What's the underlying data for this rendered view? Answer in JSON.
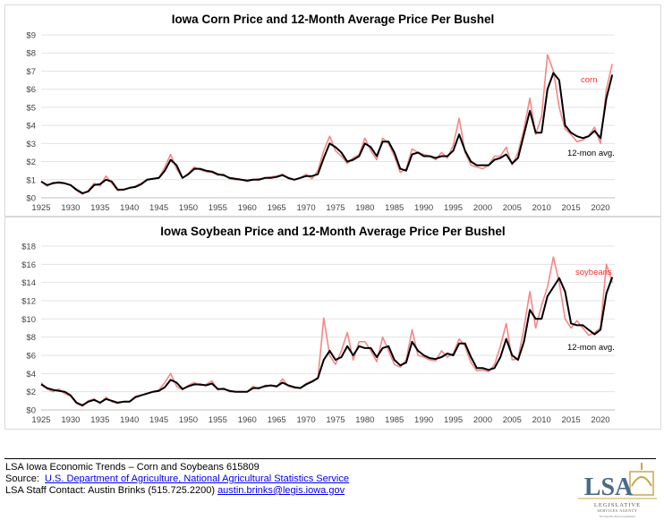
{
  "chart_data": [
    {
      "type": "line",
      "title": "Iowa Corn Price and 12-Month Average Price Per Bushel",
      "xlabel": "",
      "ylabel": "",
      "xlim": [
        1925,
        2022
      ],
      "ylim": [
        0,
        9
      ],
      "x_ticks": [
        "1925",
        "1930",
        "1935",
        "1940",
        "1945",
        "1950",
        "1955",
        "1960",
        "1965",
        "1970",
        "1975",
        "1980",
        "1985",
        "1990",
        "1995",
        "2000",
        "2005",
        "2010",
        "2015",
        "2020"
      ],
      "y_ticks": [
        "$0",
        "$1",
        "$2",
        "$3",
        "$4",
        "$5",
        "$6",
        "$7",
        "$8",
        "$9"
      ],
      "grid": true,
      "annotations": [
        {
          "text": "corn",
          "color": "#ff0000"
        },
        {
          "text": "12-mon avg.",
          "color": "#000000"
        }
      ],
      "x": [
        1925,
        1926,
        1927,
        1928,
        1929,
        1930,
        1931,
        1932,
        1933,
        1934,
        1935,
        1936,
        1937,
        1938,
        1939,
        1940,
        1941,
        1942,
        1943,
        1944,
        1945,
        1946,
        1947,
        1948,
        1949,
        1950,
        1951,
        1952,
        1953,
        1954,
        1955,
        1956,
        1957,
        1958,
        1959,
        1960,
        1961,
        1962,
        1963,
        1964,
        1965,
        1966,
        1967,
        1968,
        1969,
        1970,
        1971,
        1972,
        1973,
        1974,
        1975,
        1976,
        1977,
        1978,
        1979,
        1980,
        1981,
        1982,
        1983,
        1984,
        1985,
        1986,
        1987,
        1988,
        1989,
        1990,
        1991,
        1992,
        1993,
        1994,
        1995,
        1996,
        1997,
        1998,
        1999,
        2000,
        2001,
        2002,
        2003,
        2004,
        2005,
        2006,
        2007,
        2008,
        2009,
        2010,
        2011,
        2012,
        2013,
        2014,
        2015,
        2016,
        2017,
        2018,
        2019,
        2020,
        2021,
        2022
      ],
      "series": [
        {
          "name": "corn",
          "color": "#f47a7a",
          "values": [
            0.9,
            0.65,
            0.85,
            0.8,
            0.8,
            0.7,
            0.4,
            0.2,
            0.4,
            0.8,
            0.65,
            1.2,
            0.8,
            0.4,
            0.45,
            0.55,
            0.65,
            0.8,
            1.0,
            1.05,
            1.1,
            1.7,
            2.4,
            1.6,
            1.1,
            1.35,
            1.7,
            1.55,
            1.45,
            1.4,
            1.25,
            1.3,
            1.05,
            1.0,
            1.0,
            0.9,
            1.0,
            1.05,
            1.1,
            1.15,
            1.2,
            1.3,
            1.05,
            1.0,
            1.1,
            1.3,
            1.05,
            1.5,
            2.6,
            3.4,
            2.6,
            2.3,
            1.9,
            2.2,
            2.4,
            3.3,
            2.6,
            2.1,
            3.3,
            3.0,
            2.3,
            1.4,
            1.6,
            2.7,
            2.5,
            2.4,
            2.3,
            2.1,
            2.5,
            2.2,
            2.9,
            4.4,
            2.5,
            1.8,
            1.7,
            1.6,
            1.8,
            2.3,
            2.3,
            2.8,
            1.8,
            2.5,
            3.8,
            5.5,
            3.5,
            4.5,
            7.9,
            7.0,
            5.0,
            3.8,
            3.5,
            3.1,
            3.2,
            3.4,
            3.9,
            3.0,
            6.0,
            7.4
          ]
        },
        {
          "name": "12-mon avg.",
          "color": "#000000",
          "values": [
            0.9,
            0.7,
            0.8,
            0.85,
            0.8,
            0.7,
            0.45,
            0.25,
            0.35,
            0.7,
            0.75,
            1.0,
            0.9,
            0.45,
            0.45,
            0.55,
            0.6,
            0.75,
            1.0,
            1.05,
            1.1,
            1.5,
            2.1,
            1.8,
            1.1,
            1.3,
            1.6,
            1.6,
            1.5,
            1.45,
            1.3,
            1.25,
            1.1,
            1.05,
            1.0,
            0.95,
            1.0,
            1.0,
            1.1,
            1.1,
            1.15,
            1.25,
            1.1,
            1.0,
            1.1,
            1.2,
            1.2,
            1.3,
            2.2,
            3.0,
            2.8,
            2.5,
            2.0,
            2.1,
            2.3,
            3.0,
            2.8,
            2.3,
            3.1,
            3.1,
            2.5,
            1.6,
            1.5,
            2.4,
            2.5,
            2.3,
            2.3,
            2.2,
            2.3,
            2.3,
            2.6,
            3.5,
            2.6,
            2.0,
            1.8,
            1.8,
            1.8,
            2.1,
            2.2,
            2.4,
            1.9,
            2.2,
            3.5,
            4.8,
            3.6,
            3.6,
            6.0,
            6.9,
            6.5,
            4.0,
            3.6,
            3.4,
            3.3,
            3.4,
            3.7,
            3.3,
            5.5,
            6.8
          ]
        }
      ]
    },
    {
      "type": "line",
      "title": "Iowa Soybean Price and 12-Month Average Price Per Bushel",
      "xlabel": "",
      "ylabel": "",
      "xlim": [
        1925,
        2022
      ],
      "ylim": [
        0,
        18
      ],
      "x_ticks": [
        "1925",
        "1930",
        "1935",
        "1940",
        "1945",
        "1950",
        "1955",
        "1960",
        "1965",
        "1970",
        "1975",
        "1980",
        "1985",
        "1990",
        "1995",
        "2000",
        "2005",
        "2010",
        "2015",
        "2020"
      ],
      "y_ticks": [
        "$0",
        "$2",
        "$4",
        "$6",
        "$8",
        "$10",
        "$12",
        "$14",
        "$16",
        "$18"
      ],
      "grid": true,
      "annotations": [
        {
          "text": "soybeans",
          "color": "#ff0000"
        },
        {
          "text": "12-mon avg.",
          "color": "#000000"
        }
      ],
      "x": [
        1925,
        1926,
        1927,
        1928,
        1929,
        1930,
        1931,
        1932,
        1933,
        1934,
        1935,
        1936,
        1937,
        1938,
        1939,
        1940,
        1941,
        1942,
        1943,
        1944,
        1945,
        1946,
        1947,
        1948,
        1949,
        1950,
        1951,
        1952,
        1953,
        1954,
        1955,
        1956,
        1957,
        1958,
        1959,
        1960,
        1961,
        1962,
        1963,
        1964,
        1965,
        1966,
        1967,
        1968,
        1969,
        1970,
        1971,
        1972,
        1973,
        1974,
        1975,
        1976,
        1977,
        1978,
        1979,
        1980,
        1981,
        1982,
        1983,
        1984,
        1985,
        1986,
        1987,
        1988,
        1989,
        1990,
        1991,
        1992,
        1993,
        1994,
        1995,
        1996,
        1997,
        1998,
        1999,
        2000,
        2001,
        2002,
        2003,
        2004,
        2005,
        2006,
        2007,
        2008,
        2009,
        2010,
        2011,
        2012,
        2013,
        2014,
        2015,
        2016,
        2017,
        2018,
        2019,
        2020,
        2021,
        2022
      ],
      "series": [
        {
          "name": "soybeans",
          "color": "#f47a7a",
          "values": [
            3.0,
            2.3,
            2.0,
            2.3,
            1.8,
            1.5,
            0.7,
            0.4,
            1.0,
            1.2,
            0.7,
            1.4,
            0.9,
            0.7,
            0.9,
            0.9,
            1.5,
            1.6,
            1.8,
            2.0,
            2.2,
            3.0,
            4.0,
            2.6,
            2.2,
            2.7,
            3.0,
            2.7,
            2.8,
            3.2,
            2.2,
            2.4,
            2.0,
            2.0,
            2.0,
            2.0,
            2.6,
            2.3,
            2.7,
            2.7,
            2.5,
            3.4,
            2.6,
            2.4,
            2.4,
            2.9,
            3.2,
            3.4,
            10.1,
            6.0,
            5.0,
            6.5,
            8.5,
            5.5,
            7.5,
            7.5,
            6.5,
            5.3,
            8.0,
            6.5,
            5.0,
            4.7,
            5.5,
            8.8,
            6.0,
            5.8,
            5.5,
            5.4,
            6.5,
            5.8,
            6.2,
            7.8,
            7.0,
            5.2,
            4.3,
            4.4,
            4.2,
            5.0,
            7.0,
            9.5,
            5.5,
            5.6,
            9.0,
            13.0,
            9.0,
            11.5,
            13.5,
            16.8,
            14.0,
            10.0,
            9.0,
            9.8,
            9.0,
            8.2,
            8.5,
            9.0,
            16.0,
            14.0
          ]
        },
        {
          "name": "12-mon avg.",
          "color": "#000000",
          "values": [
            2.8,
            2.4,
            2.2,
            2.1,
            2.0,
            1.6,
            0.8,
            0.5,
            0.9,
            1.1,
            0.8,
            1.2,
            1.0,
            0.8,
            0.9,
            0.9,
            1.4,
            1.6,
            1.8,
            2.0,
            2.1,
            2.5,
            3.3,
            3.0,
            2.3,
            2.6,
            2.8,
            2.8,
            2.7,
            2.9,
            2.3,
            2.3,
            2.1,
            2.0,
            2.0,
            2.0,
            2.4,
            2.4,
            2.6,
            2.7,
            2.6,
            3.0,
            2.7,
            2.5,
            2.4,
            2.8,
            3.1,
            3.5,
            5.5,
            6.5,
            5.5,
            5.8,
            7.0,
            6.0,
            7.0,
            6.8,
            6.8,
            5.8,
            6.8,
            7.0,
            5.5,
            4.9,
            5.2,
            7.5,
            6.5,
            6.0,
            5.7,
            5.6,
            5.8,
            6.2,
            6.0,
            7.3,
            7.3,
            5.8,
            4.6,
            4.6,
            4.4,
            4.6,
            5.8,
            7.8,
            6.0,
            5.5,
            7.5,
            11.0,
            10.0,
            10.0,
            12.5,
            13.5,
            14.5,
            13.0,
            9.5,
            9.3,
            9.3,
            8.8,
            8.3,
            8.8,
            12.8,
            14.6
          ]
        }
      ]
    }
  ],
  "footer": {
    "line1": "LSA Iowa Economic Trends – Corn and Soybeans 615809",
    "source_label": "Source:",
    "source_link": "U.S. Department of Agriculture, National Agricultural Statistics Service",
    "contact_label": "LSA Staff Contact:  Austin Brinks (515.725.2200)",
    "contact_email": "austin.brinks@legis.iowa.gov"
  },
  "logo": {
    "letters": "LSA",
    "line1": "LEGISLATIVE",
    "line2": "SERVICES AGENCY",
    "tagline": "Serving the Iowa Legislature",
    "colors": {
      "blue": "#4a6a8a",
      "gold": "#c8a84a"
    }
  }
}
